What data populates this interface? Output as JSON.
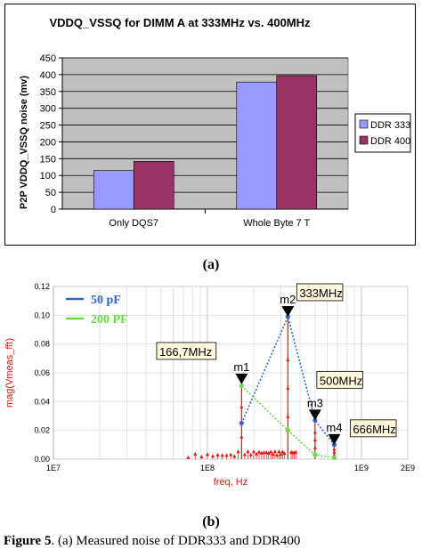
{
  "caption_a": "(a)",
  "caption_b": "(b)",
  "figure_caption": {
    "label": "Figure 5",
    "text": ". (a) Measured noise of DDR333 and DDR400"
  },
  "chart_data": [
    {
      "type": "bar",
      "title": "VDDQ_VSSQ for DIMM A at 333MHz vs. 400MHz",
      "xlabel": "",
      "ylabel": "P2P VDDQ_VSSQ noise (mv)",
      "categories": [
        "Only DQS7",
        "Whole Byte 7 T"
      ],
      "series": [
        {
          "name": "DDR 333",
          "values": [
            115,
            378
          ],
          "color": "#9999ff"
        },
        {
          "name": "DDR 400",
          "values": [
            142,
            397
          ],
          "color": "#993366"
        }
      ],
      "ylim": [
        0,
        450
      ],
      "yticks": [
        0,
        50,
        100,
        150,
        200,
        250,
        300,
        350,
        400,
        450
      ],
      "grid": true,
      "plot_background": "#c0c0c0",
      "legend": "right"
    },
    {
      "type": "line",
      "xlabel": "freq, Hz",
      "ylabel": "mag(Vmeas_fft)",
      "xscale": "log",
      "xlim": [
        10000000,
        2000000000
      ],
      "xtick_labels": [
        "1E7",
        "1E8",
        "1E9",
        "2E9"
      ],
      "xtick_values": [
        10000000,
        100000000,
        1000000000,
        2000000000
      ],
      "ylim": [
        0,
        0.12
      ],
      "ytick_labels": [
        "0.00",
        "0.02",
        "0.04",
        "0.06",
        "0.08",
        "0.10",
        "0.12"
      ],
      "series": [
        {
          "name": "50 pF",
          "color": "#3366cc",
          "x": [
            166700000,
            333000000,
            500000000,
            666000000
          ],
          "y": [
            0.025,
            0.099,
            0.027,
            0.01
          ]
        },
        {
          "name": "200 PF",
          "color": "#66dd44",
          "x": [
            166700000,
            333000000,
            500000000,
            666000000
          ],
          "y": [
            0.051,
            0.02,
            0.003,
            0.001
          ]
        }
      ],
      "spectrum": {
        "color": "#ee1111",
        "peaks": [
          {
            "x": 166700000,
            "y": 0.052
          },
          {
            "x": 333000000,
            "y": 0.099
          },
          {
            "x": 500000000,
            "y": 0.027
          },
          {
            "x": 666000000,
            "y": 0.01
          }
        ]
      },
      "markers": [
        {
          "name": "m1",
          "label": "166,7MHz",
          "x": 166700000,
          "y": 0.052
        },
        {
          "name": "m2",
          "label": "333MHz",
          "x": 333000000,
          "y": 0.099
        },
        {
          "name": "m3",
          "label": "500MHz",
          "x": 500000000,
          "y": 0.027
        },
        {
          "name": "m4",
          "label": "666MHz",
          "x": 666000000,
          "y": 0.01
        }
      ],
      "legend": "top-left"
    }
  ]
}
